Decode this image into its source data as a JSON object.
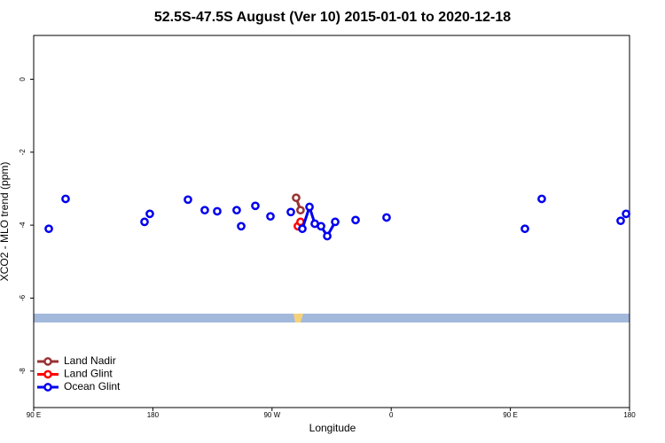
{
  "chart_data": {
    "type": "line",
    "title": "52.5S-47.5S August (Ver 10)   2015-01-01 to 2020-12-18",
    "x_label": "Longitude",
    "y_label": "XCO2 - MLO trend (ppm)",
    "xlim": [
      90,
      540
    ],
    "ylim": [
      -9,
      1.2
    ],
    "xticks": [
      {
        "value": 90,
        "label": "90 E"
      },
      180,
      {
        "value": 270,
        "label": "90 W"
      },
      {
        "value": 360,
        "label": "0"
      },
      {
        "value": 450,
        "label": "90 E"
      },
      {
        "value": 540,
        "label": "180"
      }
    ],
    "yticks": [
      0,
      -2,
      -4,
      -6,
      -8
    ],
    "legend": "bottom-left",
    "series": [
      {
        "name": "Land Nadir",
        "color": "#993333",
        "x": [
          288.2,
          291.5
        ],
        "values": [
          -3.25,
          -3.59
        ]
      },
      {
        "name": "Land Glint",
        "color": "#ff0000",
        "x": [
          289.5,
          291.5
        ],
        "values": [
          -4.03,
          -3.91
        ]
      },
      {
        "name": "Ocean Glint",
        "color": "#0000ee",
        "x": [
          101.4,
          null,
          114.1,
          null,
          173.7,
          null,
          177.7,
          null,
          206.5,
          null,
          219.2,
          null,
          228.6,
          null,
          243.3,
          null,
          246.7,
          null,
          257.4,
          null,
          268.8,
          null,
          284.2,
          null,
          292.9,
          298.3,
          302.3,
          307.0,
          311.7,
          317.7,
          null,
          333.1,
          null,
          356.5,
          null,
          461.0,
          null,
          473.7,
          null,
          533.3,
          null,
          537.4
        ],
        "values": [
          -4.1,
          null,
          -3.28,
          null,
          -3.91,
          null,
          -3.69,
          null,
          -3.3,
          null,
          -3.59,
          null,
          -3.62,
          null,
          -3.59,
          null,
          -4.03,
          null,
          -3.47,
          null,
          -3.76,
          null,
          -3.64,
          null,
          -4.1,
          -3.5,
          -3.96,
          -4.03,
          -4.3,
          -3.91,
          null,
          -3.86,
          null,
          -3.79,
          null,
          -4.1,
          null,
          -3.28,
          null,
          -3.88,
          null,
          -3.69
        ]
      }
    ]
  }
}
